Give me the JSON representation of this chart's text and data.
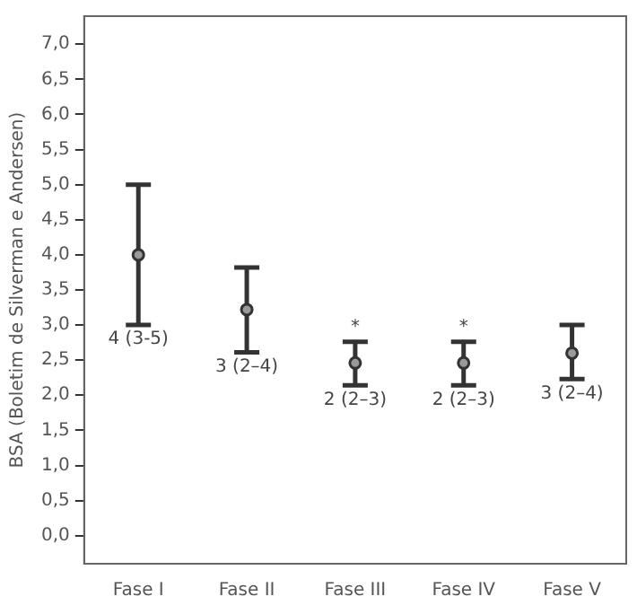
{
  "chart_data": {
    "type": "scatter",
    "ylabel": "BSA (Boletim de Silverman e Andersen)",
    "categories": [
      "Fase I",
      "Fase II",
      "Fase III",
      "Fase IV",
      "Fase V"
    ],
    "values": [
      4.0,
      3.22,
      2.46,
      2.46,
      2.6
    ],
    "errors": [
      [
        3.0,
        5.0
      ],
      [
        2.61,
        3.82
      ],
      [
        2.14,
        2.76
      ],
      [
        2.14,
        2.76
      ],
      [
        2.23,
        3.0
      ]
    ],
    "color": "#333333",
    "marker": "circle",
    "grid": false,
    "legend": false,
    "ylim": [
      -0.4,
      7.4
    ],
    "yticks": [
      {
        "value": 0,
        "label": "0,0"
      },
      {
        "value": 0.5,
        "label": "0,5"
      },
      {
        "value": 1,
        "label": "1,0"
      },
      {
        "value": 1.5,
        "label": "1,5"
      },
      {
        "value": 2,
        "label": "2,0"
      },
      {
        "value": 2.5,
        "label": "2,5"
      },
      {
        "value": 3,
        "label": "3,0"
      },
      {
        "value": 3.5,
        "label": "3,5"
      },
      {
        "value": 4,
        "label": "4,0"
      },
      {
        "value": 4.5,
        "label": "4,5"
      },
      {
        "value": 5,
        "label": "5,0"
      },
      {
        "value": 5.5,
        "label": "5,5"
      },
      {
        "value": 6,
        "label": "6,0"
      },
      {
        "value": 6.5,
        "label": "6,5"
      },
      {
        "value": 7,
        "label": "7,0"
      }
    ],
    "annotations": [
      {
        "text": "4 (3-5)",
        "x": "Fase I",
        "y": 3.0
      },
      {
        "text": "3 (2–4)",
        "x": "Fase II",
        "y": 2.61
      },
      {
        "text": "2 (2–3)",
        "x": "Fase III",
        "y": 2.14
      },
      {
        "text": "2 (2–3)",
        "x": "Fase IV",
        "y": 2.14
      },
      {
        "text": "3 (2–4)",
        "x": "Fase V",
        "y": 2.23
      },
      {
        "text": "*",
        "x": "Fase III",
        "y": 2.76
      },
      {
        "text": "*",
        "x": "Fase IV",
        "y": 2.76
      }
    ]
  }
}
